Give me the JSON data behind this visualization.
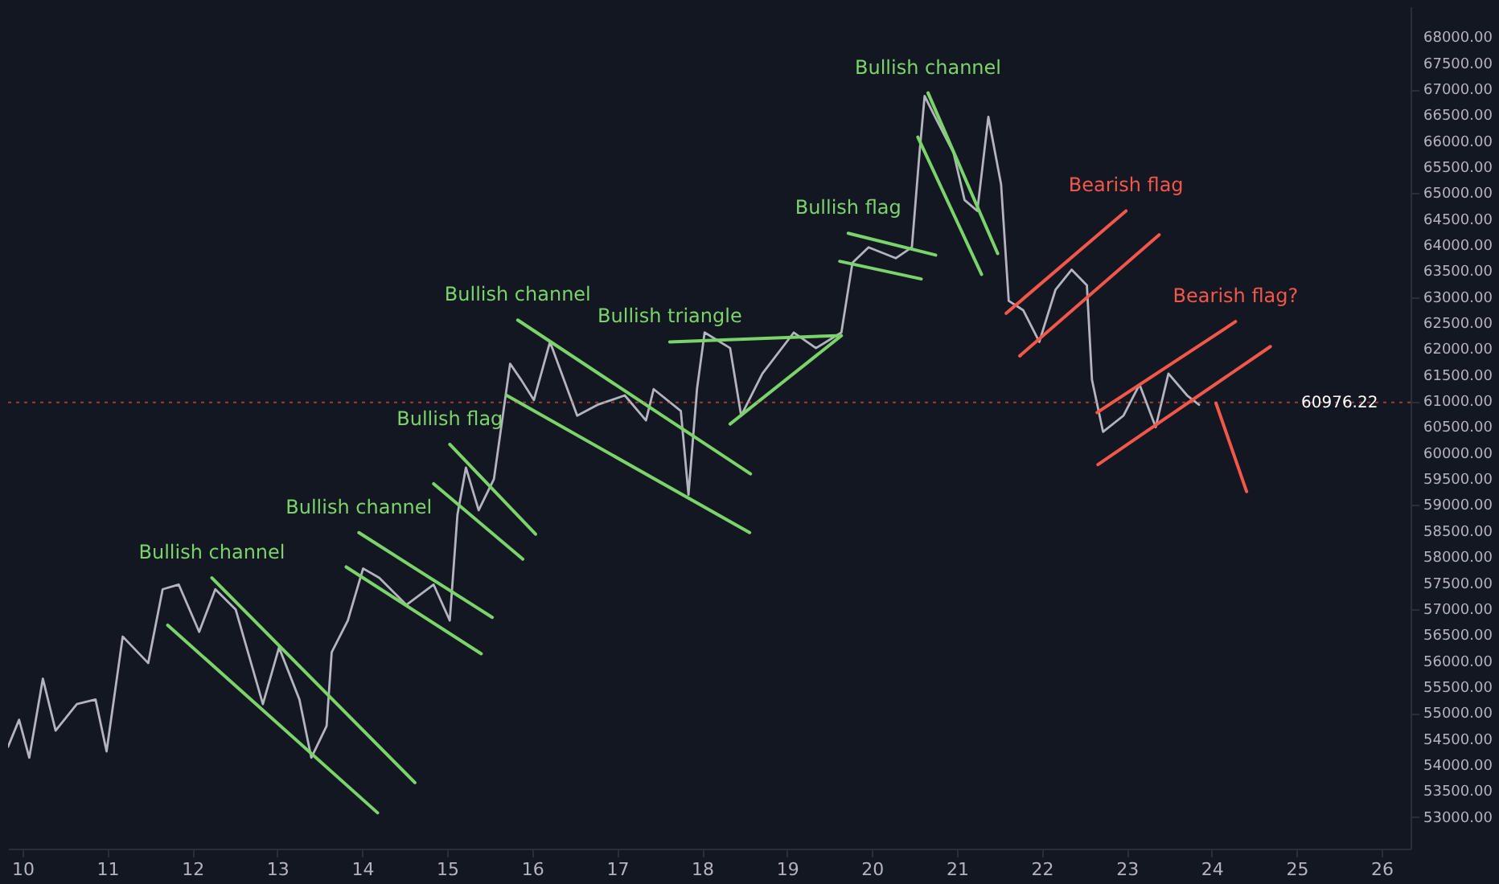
{
  "chart_data": {
    "type": "line",
    "xlim": [
      9.83,
      26.34
    ],
    "xticks": [
      10,
      11,
      12,
      13,
      14,
      15,
      16,
      17,
      18,
      19,
      20,
      21,
      22,
      23,
      24,
      25,
      26
    ],
    "ylim": [
      52390,
      68594
    ],
    "yticks": [
      {
        "value": 53000,
        "label": "53000.00"
      },
      {
        "value": 53500,
        "label": "53500.00"
      },
      {
        "value": 54000,
        "label": "54000.00"
      },
      {
        "value": 54500,
        "label": "54500.00"
      },
      {
        "value": 55000,
        "label": "55000.00"
      },
      {
        "value": 55500,
        "label": "55500.00"
      },
      {
        "value": 56000,
        "label": "56000.00"
      },
      {
        "value": 56500,
        "label": "56500.00"
      },
      {
        "value": 57000,
        "label": "57000.00"
      },
      {
        "value": 57500,
        "label": "57500.00"
      },
      {
        "value": 58000,
        "label": "58000.00"
      },
      {
        "value": 58500,
        "label": "58500.00"
      },
      {
        "value": 59000,
        "label": "59000.00"
      },
      {
        "value": 59500,
        "label": "59500.00"
      },
      {
        "value": 60000,
        "label": "60000.00"
      },
      {
        "value": 60500,
        "label": "60500.00"
      },
      {
        "value": 61000,
        "label": "61000.00"
      },
      {
        "value": 61500,
        "label": "61500.00"
      },
      {
        "value": 62000,
        "label": "62000.00"
      },
      {
        "value": 62500,
        "label": "62500.00"
      },
      {
        "value": 63000,
        "label": "63000.00"
      },
      {
        "value": 63500,
        "label": "63500.00"
      },
      {
        "value": 64000,
        "label": "64000.00"
      },
      {
        "value": 64500,
        "label": "64500.00"
      },
      {
        "value": 65000,
        "label": "65000.00"
      },
      {
        "value": 65500,
        "label": "65500.00"
      },
      {
        "value": 66000,
        "label": "66000.00"
      },
      {
        "value": 66500,
        "label": "66500.00"
      },
      {
        "value": 67000,
        "label": "67000.00"
      },
      {
        "value": 67500,
        "label": "67500.00"
      },
      {
        "value": 68000,
        "label": "68000.00"
      }
    ],
    "grid": false,
    "series": [
      {
        "color": "#b2b5be",
        "x": [
          9.83,
          9.96,
          10.08,
          10.24,
          10.39,
          10.64,
          10.86,
          10.99,
          11.18,
          11.48,
          11.65,
          11.84,
          12.08,
          12.27,
          12.51,
          12.83,
          13.02,
          13.26,
          13.4,
          13.58,
          13.64,
          13.83,
          14.01,
          14.2,
          14.52,
          14.84,
          15.03,
          15.12,
          15.22,
          15.37,
          15.55,
          15.68,
          15.74,
          15.87,
          16.02,
          16.21,
          16.53,
          16.77,
          17.09,
          17.34,
          17.43,
          17.75,
          17.84,
          17.94,
          18.03,
          18.33,
          18.46,
          18.71,
          19.08,
          19.34,
          19.64,
          19.77,
          19.96,
          20.28,
          20.47,
          20.56,
          20.62,
          20.77,
          20.96,
          21.09,
          21.24,
          21.37,
          21.52,
          21.61,
          21.78,
          21.97,
          22.16,
          22.35,
          22.53,
          22.59,
          22.72,
          22.96,
          23.15,
          23.34,
          23.49,
          23.71,
          23.85
        ],
        "values": [
          54350,
          54870,
          54140,
          55660,
          54660,
          55170,
          55260,
          54260,
          56470,
          55960,
          57380,
          57470,
          56560,
          57380,
          56990,
          55170,
          56260,
          55260,
          54140,
          54750,
          56170,
          56780,
          57780,
          57600,
          57080,
          57470,
          56780,
          58810,
          59720,
          58900,
          59500,
          61020,
          61720,
          61410,
          61020,
          62140,
          60720,
          60930,
          61110,
          60630,
          61230,
          60810,
          59200,
          61230,
          62320,
          62020,
          60720,
          61530,
          62320,
          62020,
          62320,
          63660,
          63960,
          63750,
          63960,
          65780,
          66870,
          66380,
          65780,
          64870,
          64660,
          66470,
          65170,
          62930,
          62750,
          62140,
          63140,
          63530,
          63230,
          61410,
          60410,
          60720,
          61320,
          60500,
          61530,
          61110,
          60930
        ]
      },
      {
        "color": "#7bd46a",
        "x": [
          11.71,
          14.18
        ],
        "values": [
          56690,
          53080
        ]
      },
      {
        "color": "#7bd46a",
        "x": [
          12.23,
          14.62
        ],
        "values": [
          57600,
          53660
        ]
      },
      {
        "color": "#7bd46a",
        "x": [
          13.81,
          15.4
        ],
        "values": [
          57810,
          56140
        ]
      },
      {
        "color": "#7bd46a",
        "x": [
          13.96,
          15.53
        ],
        "values": [
          58470,
          56840
        ]
      },
      {
        "color": "#7bd46a",
        "x": [
          14.84,
          15.89
        ],
        "values": [
          59410,
          57960
        ]
      },
      {
        "color": "#7bd46a",
        "x": [
          15.03,
          16.04
        ],
        "values": [
          60170,
          58440
        ]
      },
      {
        "color": "#7bd46a",
        "x": [
          15.7,
          18.56
        ],
        "values": [
          61110,
          58470
        ]
      },
      {
        "color": "#7bd46a",
        "x": [
          15.83,
          18.57
        ],
        "values": [
          62560,
          59600
        ]
      },
      {
        "color": "#7bd46a",
        "x": [
          17.62,
          19.59
        ],
        "values": [
          62140,
          62260
        ]
      },
      {
        "color": "#7bd46a",
        "x": [
          18.33,
          19.64
        ],
        "values": [
          60560,
          62260
        ]
      },
      {
        "color": "#7bd46a",
        "x": [
          19.72,
          20.75
        ],
        "values": [
          64230,
          63810
        ]
      },
      {
        "color": "#7bd46a",
        "x": [
          19.62,
          20.58
        ],
        "values": [
          63690,
          63350
        ]
      },
      {
        "color": "#7bd46a",
        "x": [
          20.54,
          21.29
        ],
        "values": [
          66080,
          63440
        ]
      },
      {
        "color": "#7bd46a",
        "x": [
          20.66,
          21.48
        ],
        "values": [
          66930,
          63840
        ]
      },
      {
        "color": "#f2574a",
        "x": [
          21.58,
          22.99
        ],
        "values": [
          62690,
          64660
        ]
      },
      {
        "color": "#f2574a",
        "x": [
          21.74,
          23.38
        ],
        "values": [
          61870,
          64200
        ]
      },
      {
        "color": "#f2574a",
        "x": [
          22.65,
          24.28
        ],
        "values": [
          60780,
          62530
        ]
      },
      {
        "color": "#f2574a",
        "x": [
          22.66,
          24.69
        ],
        "values": [
          59780,
          62050
        ]
      },
      {
        "color": "#f2574a",
        "x": [
          24.05,
          24.41
        ],
        "values": [
          60960,
          59260
        ]
      }
    ],
    "ref_lines": [
      {
        "axis": "y",
        "value": 60976.22,
        "label": "60976.22",
        "color": "#f2574a",
        "line_style": "dotted"
      }
    ],
    "annotations": [
      {
        "text": "Bullish channel",
        "x": 12.23,
        "y": 57600
      },
      {
        "text": "Bullish channel",
        "x": 13.96,
        "y": 58470
      },
      {
        "text": "Bullish flag",
        "x": 15.03,
        "y": 60170
      },
      {
        "text": "Bullish channel",
        "x": 15.83,
        "y": 62560
      },
      {
        "text": "Bullish triangle",
        "x": 17.62,
        "y": 62140
      },
      {
        "text": "Bullish flag",
        "x": 19.72,
        "y": 64230
      },
      {
        "text": "Bullish channel",
        "x": 20.66,
        "y": 66930
      },
      {
        "text": "Bearish flag",
        "x": 22.99,
        "y": 64660
      },
      {
        "text": "Bearish flag?",
        "x": 24.28,
        "y": 62530
      }
    ]
  }
}
